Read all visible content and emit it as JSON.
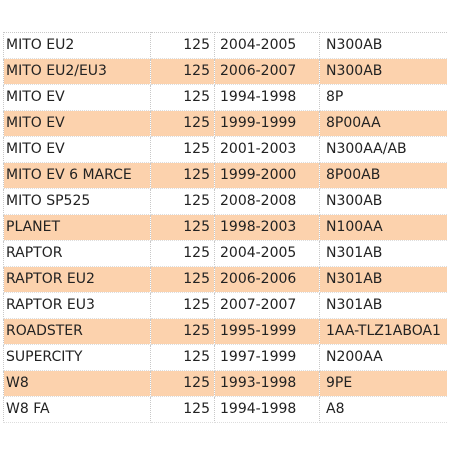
{
  "colors": {
    "alt_row": "#fcd2ad",
    "row": "#ffffff",
    "text": "#222222"
  },
  "rows": [
    {
      "model": "MITO EU2",
      "cc": "125",
      "years": "2004-2005",
      "code": "N300AB"
    },
    {
      "model": "MITO EU2/EU3",
      "cc": "125",
      "years": "2006-2007",
      "code": "N300AB"
    },
    {
      "model": "MITO EV",
      "cc": "125",
      "years": "1994-1998",
      "code": "8P"
    },
    {
      "model": "MITO EV",
      "cc": "125",
      "years": "1999-1999",
      "code": "8P00AA"
    },
    {
      "model": "MITO EV",
      "cc": "125",
      "years": "2001-2003",
      "code": "N300AA/AB"
    },
    {
      "model": "MITO EV 6 MARCE",
      "cc": "125",
      "years": "1999-2000",
      "code": "8P00AB"
    },
    {
      "model": "MITO SP525",
      "cc": "125",
      "years": "2008-2008",
      "code": "N300AB"
    },
    {
      "model": "PLANET",
      "cc": "125",
      "years": "1998-2003",
      "code": "N100AA"
    },
    {
      "model": "RAPTOR",
      "cc": "125",
      "years": "2004-2005",
      "code": "N301AB"
    },
    {
      "model": "RAPTOR EU2",
      "cc": "125",
      "years": "2006-2006",
      "code": "N301AB"
    },
    {
      "model": "RAPTOR EU3",
      "cc": "125",
      "years": "2007-2007",
      "code": "N301AB"
    },
    {
      "model": "ROADSTER",
      "cc": "125",
      "years": "1995-1999",
      "code": "1AA-TLZ1ABOA1"
    },
    {
      "model": "SUPERCITY",
      "cc": "125",
      "years": "1997-1999",
      "code": "N200AA"
    },
    {
      "model": "W8",
      "cc": "125",
      "years": "1993-1998",
      "code": "9PE"
    },
    {
      "model": "W8 FA",
      "cc": "125",
      "years": "1994-1998",
      "code": "A8"
    }
  ]
}
